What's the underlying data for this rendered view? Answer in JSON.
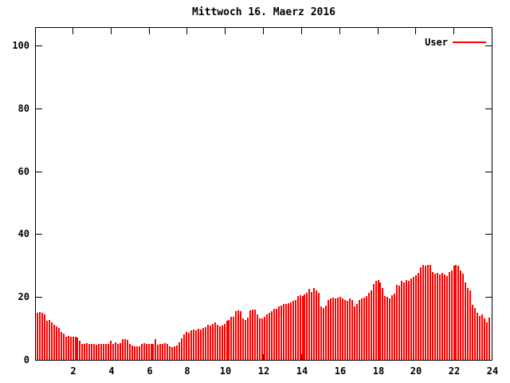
{
  "title": "Mittwoch 16. Maerz 2016",
  "legend": {
    "series_label": "User"
  },
  "colors": {
    "background": "#ffffff",
    "axis": "#000000",
    "bar": "#ff0000",
    "text": "#000000"
  },
  "chart_data": {
    "type": "bar",
    "title": "Mittwoch 16. Maerz 2016",
    "series_name": "User",
    "xlabel": "",
    "ylabel": "",
    "x_unit": "hour of day",
    "interval_minutes": 7.5,
    "x_start_hour": 0,
    "xlim": [
      0,
      24
    ],
    "ylim": [
      0,
      106
    ],
    "x_ticks": [
      2,
      4,
      6,
      8,
      10,
      12,
      14,
      16,
      18,
      20,
      22,
      24
    ],
    "y_ticks": [
      0,
      20,
      40,
      60,
      80,
      100
    ],
    "grid": false,
    "legend_position": "top-right-inside",
    "bar_color": "#ff0000",
    "values": [
      15,
      15.2,
      15,
      14.5,
      12.5,
      12.6,
      12,
      11.1,
      10.7,
      10.2,
      9,
      8.5,
      7.3,
      7.7,
      7.3,
      7.3,
      7.3,
      7,
      6,
      5.2,
      5.2,
      5.3,
      5,
      5.2,
      5,
      4.7,
      5.2,
      5,
      5.2,
      5.2,
      5.1,
      6.1,
      5.2,
      5.7,
      5.2,
      5.4,
      6.5,
      6.5,
      6.3,
      5.2,
      4.6,
      4.4,
      4.4,
      4.4,
      5.2,
      5.4,
      5.2,
      5.2,
      5.2,
      5.2,
      6.5,
      4.8,
      5.1,
      5.2,
      5.4,
      5,
      4.3,
      4,
      4.2,
      4.6,
      5.6,
      6.9,
      8.1,
      9,
      8.7,
      9.4,
      9.6,
      9.4,
      9.8,
      9.6,
      10.2,
      10.4,
      11.1,
      10.9,
      11.5,
      11.9,
      11.1,
      10.7,
      10.8,
      11.5,
      12.4,
      12.8,
      13.6,
      13.6,
      15.6,
      15.7,
      15.6,
      13.2,
      12.8,
      13.4,
      15.7,
      15.9,
      15.9,
      14.5,
      13.2,
      13.2,
      13.6,
      14.5,
      14.9,
      15.5,
      16.2,
      16.3,
      17,
      17.2,
      17.8,
      17.7,
      18,
      18.3,
      18.7,
      19.1,
      20.4,
      20.6,
      20.2,
      20.8,
      21.2,
      22.5,
      21.7,
      22.9,
      22.1,
      21.2,
      17,
      16.6,
      17.2,
      19.1,
      19.5,
      19.7,
      19.5,
      19.7,
      20,
      19.5,
      19.1,
      18.7,
      19.5,
      19.1,
      17,
      17.8,
      19.1,
      19.5,
      19.7,
      20.4,
      21.4,
      22.1,
      24.2,
      25,
      25.5,
      24.6,
      22.9,
      20.4,
      20,
      19.5,
      20.6,
      21,
      23.8,
      23.5,
      25,
      24.6,
      25.5,
      25,
      25.9,
      26.3,
      26.9,
      27.6,
      29.4,
      30.1,
      30,
      30.3,
      30.1,
      28,
      27.4,
      27.7,
      27.2,
      27.6,
      27.2,
      26.7,
      28,
      28.4,
      29.9,
      30.1,
      29.9,
      28.4,
      27.4,
      24.6,
      22.9,
      22.1,
      17.4,
      16.6,
      14.9,
      14,
      14.5,
      13.2,
      11.9,
      13.4
    ]
  }
}
